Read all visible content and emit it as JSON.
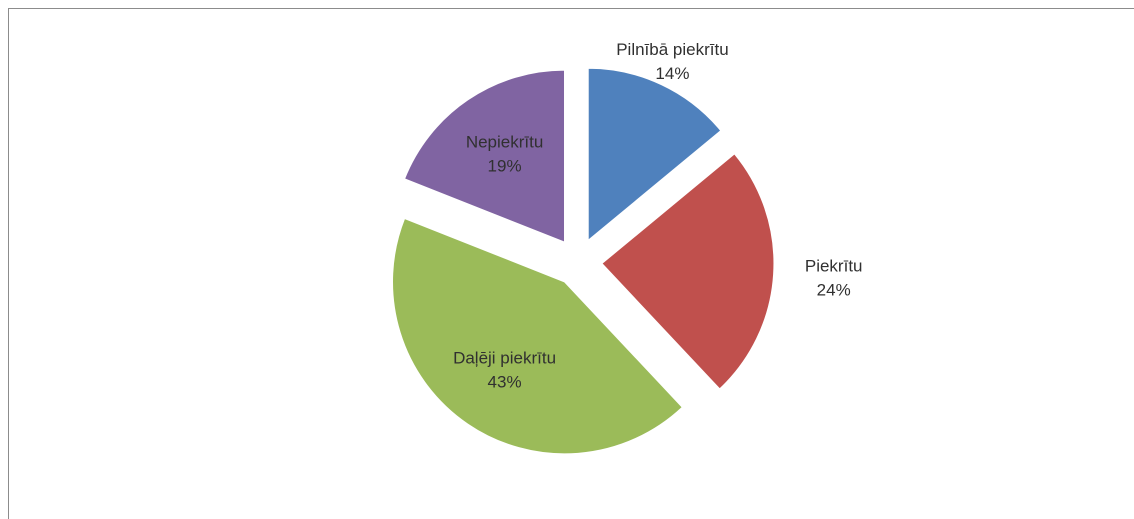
{
  "chart_data": {
    "type": "pie",
    "categories": [
      "Pilnībā piekrītu",
      "Piekrītu",
      "Daļēji piekrītu",
      "Nepiekrītu"
    ],
    "values": [
      14,
      24,
      43,
      19
    ],
    "value_labels": [
      "14%",
      "24%",
      "43%",
      "19%"
    ],
    "colors": [
      "#4f81bd",
      "#c0504d",
      "#9bbb59",
      "#8064a2"
    ],
    "exploded": true
  }
}
